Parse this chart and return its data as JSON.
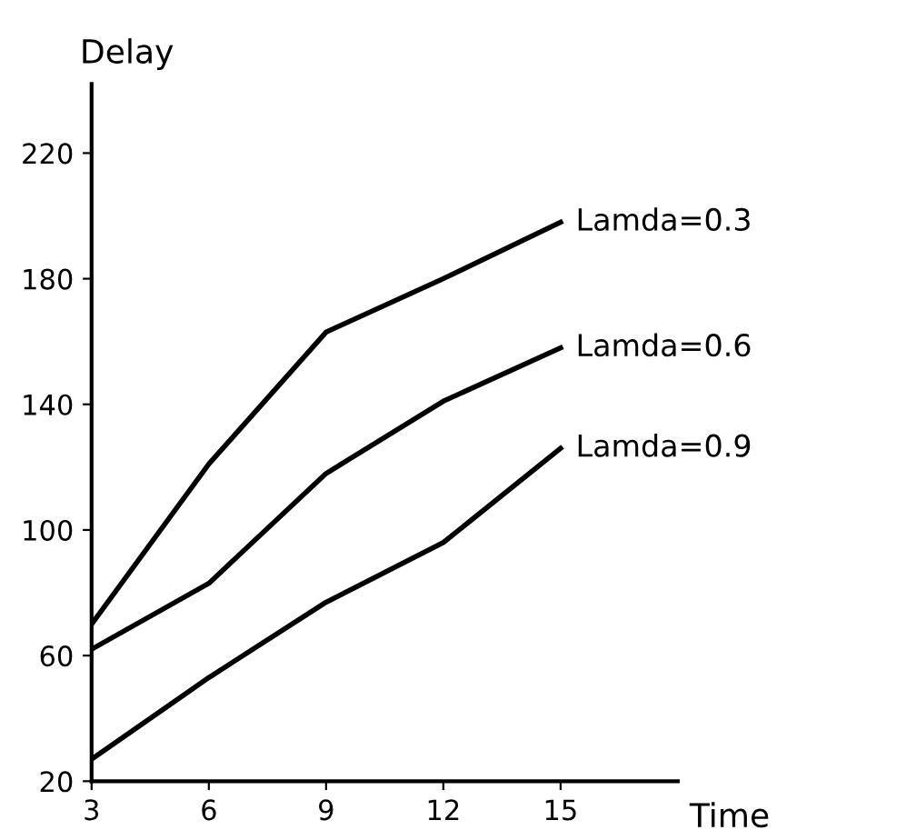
{
  "chart_data": {
    "type": "line",
    "xlabel": "Time",
    "ylabel": "Delay",
    "x": [
      3,
      6,
      9,
      12,
      15
    ],
    "series": [
      {
        "name": "Lamda=0.3",
        "color": "#000000",
        "values": [
          70,
          121,
          163,
          180,
          198
        ]
      },
      {
        "name": "Lamda=0.6",
        "color": "#000000",
        "values": [
          62,
          83,
          118,
          141,
          158
        ]
      },
      {
        "name": "Lamda=0.9",
        "color": "#000000",
        "values": [
          27,
          53,
          77,
          96,
          126
        ]
      }
    ],
    "xlim": [
      3,
      18
    ],
    "ylim": [
      20,
      242
    ],
    "xticks": [
      3,
      6,
      9,
      12,
      15
    ],
    "yticks": [
      20,
      60,
      100,
      140,
      180,
      220
    ],
    "grid": false,
    "legend": false,
    "marker": "none",
    "line_style": "solid"
  }
}
